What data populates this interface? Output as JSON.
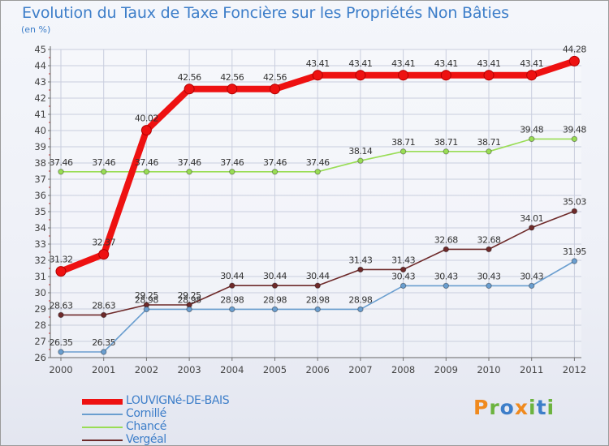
{
  "chart_data": {
    "type": "line",
    "title": "Evolution du Taux de Taxe Foncière sur les Propriétés Non Bâties",
    "ylabel": "(en %)",
    "xlabel": "",
    "ylim": [
      26,
      45
    ],
    "yticks": [
      "26",
      "27",
      "28",
      "29",
      "30",
      "31",
      "32",
      "33",
      "34",
      "35",
      "36",
      "37",
      "38",
      "39",
      "40",
      "41",
      "42",
      "43",
      "44",
      "45"
    ],
    "categories": [
      "2000",
      "2001",
      "2002",
      "2003",
      "2004",
      "2005",
      "2006",
      "2007",
      "2008",
      "2009",
      "2010",
      "2011",
      "2012"
    ],
    "grid": true,
    "legend_position": "bottom-left",
    "series": [
      {
        "name": "Vergéal",
        "color": "#6e2a2a",
        "values": [
          28.63,
          28.63,
          29.25,
          29.25,
          30.44,
          30.44,
          30.44,
          31.43,
          31.43,
          32.68,
          32.68,
          34.01,
          35.03
        ],
        "labels": [
          "28.63",
          "28.63",
          "29.25",
          "29.25",
          "30.44",
          "30.44",
          "30.44",
          "31.43",
          "31.43",
          "32.68",
          "32.68",
          "34.01",
          "35.03"
        ]
      },
      {
        "name": "Chancé",
        "color": "#99dd55",
        "values": [
          37.46,
          37.46,
          37.46,
          37.46,
          37.46,
          37.46,
          37.46,
          38.14,
          38.71,
          38.71,
          38.71,
          39.48,
          39.48
        ],
        "labels": [
          "37.46",
          "37.46",
          "37.46",
          "37.46",
          "37.46",
          "37.46",
          "37.46",
          "38.14",
          "38.71",
          "38.71",
          "38.71",
          "39.48",
          "39.48"
        ]
      },
      {
        "name": "Cornillé",
        "color": "#6a9ecf",
        "values": [
          26.35,
          26.35,
          28.98,
          28.98,
          28.98,
          28.98,
          28.98,
          28.98,
          30.43,
          30.43,
          30.43,
          30.43,
          31.95
        ],
        "labels": [
          "26.35",
          "26.35",
          "28.98",
          "28.98",
          "28.98",
          "28.98",
          "28.98",
          "28.98",
          "30.43",
          "30.43",
          "30.43",
          "30.43",
          "31.95"
        ]
      },
      {
        "name": "LOUVIGNé-DE-BAIS",
        "color": "#ee1111",
        "values": [
          31.32,
          32.37,
          40.02,
          42.56,
          42.56,
          42.56,
          43.41,
          43.41,
          43.41,
          43.41,
          43.41,
          43.41,
          44.28
        ],
        "labels": [
          "31.32",
          "32.37",
          "40.02",
          "42.56",
          "42.56",
          "42.56",
          "43.41",
          "43.41",
          "43.41",
          "43.41",
          "43.41",
          "43.41",
          "44.28"
        ]
      }
    ],
    "legend_order": [
      "LOUVIGNé-DE-BAIS",
      "Cornillé",
      "Chancé",
      "Vergéal"
    ]
  },
  "logo": {
    "text": "Proxiti",
    "colors": [
      "#f08a1e",
      "#6cb33f",
      "#3d7ec9",
      "#f08a1e",
      "#6cb33f",
      "#3d7ec9",
      "#6cb33f"
    ]
  }
}
